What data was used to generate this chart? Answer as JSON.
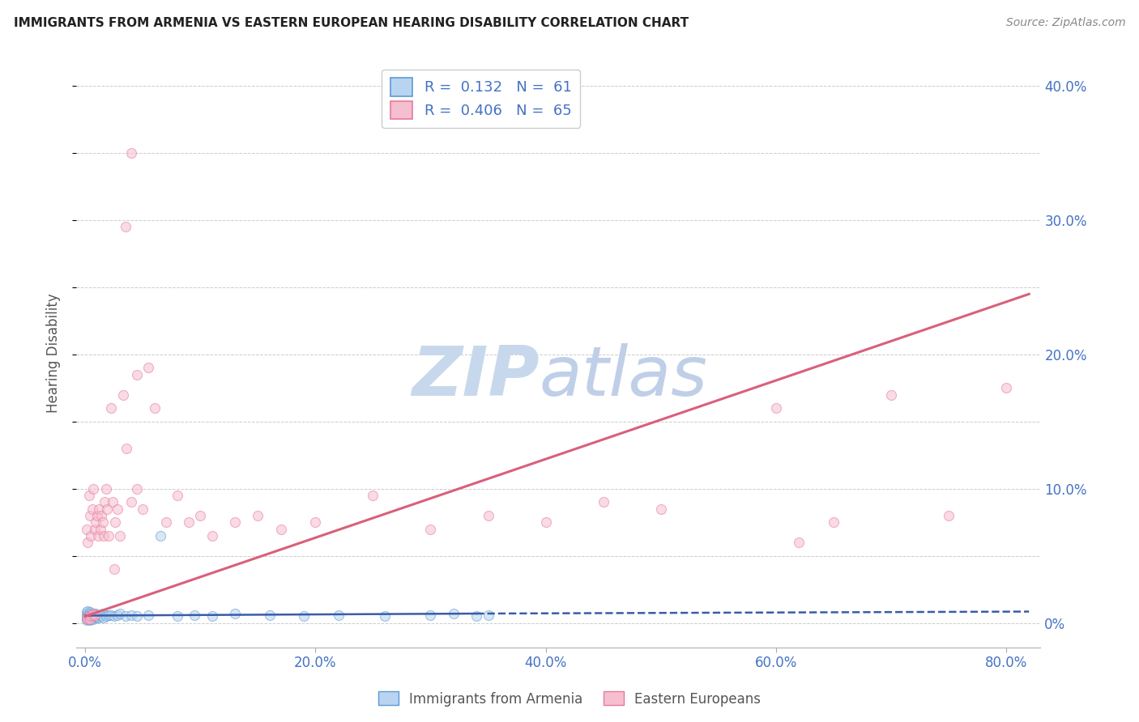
{
  "title": "IMMIGRANTS FROM ARMENIA VS EASTERN EUROPEAN HEARING DISABILITY CORRELATION CHART",
  "source": "Source: ZipAtlas.com",
  "ylabel": "Hearing Disability",
  "armenia_color": "#b8d4f0",
  "armenia_edge_color": "#5b9bd5",
  "eastern_color": "#f5bfcf",
  "eastern_edge_color": "#e8789e",
  "trendline_blue_color": "#3a5ca8",
  "trendline_pink_color": "#d9607a",
  "watermark_color": "#dde8f5",
  "background_color": "#ffffff",
  "xlim": [
    -0.008,
    0.83
  ],
  "ylim": [
    -0.018,
    0.42
  ],
  "x_ticks": [
    0.0,
    0.2,
    0.4,
    0.6,
    0.8
  ],
  "x_tick_labels": [
    "0.0%",
    "20.0%",
    "40.0%",
    "60.0%",
    "80.0%"
  ],
  "y_ticks": [
    0.0,
    0.1,
    0.2,
    0.3,
    0.4
  ],
  "y_tick_labels": [
    "0%",
    "10.0%",
    "20.0%",
    "30.0%",
    "40.0%"
  ],
  "label_armenia": "Immigrants from Armenia",
  "label_eastern": "Eastern Europeans",
  "marker_size": 75,
  "alpha": 0.55,
  "grid_color": "#cccccc",
  "arm_x": [
    0.001,
    0.001,
    0.001,
    0.001,
    0.002,
    0.002,
    0.002,
    0.002,
    0.002,
    0.003,
    0.003,
    0.003,
    0.003,
    0.004,
    0.004,
    0.004,
    0.004,
    0.005,
    0.005,
    0.005,
    0.005,
    0.006,
    0.006,
    0.007,
    0.007,
    0.007,
    0.008,
    0.008,
    0.009,
    0.009,
    0.01,
    0.01,
    0.011,
    0.012,
    0.013,
    0.014,
    0.015,
    0.016,
    0.018,
    0.02,
    0.022,
    0.025,
    0.028,
    0.03,
    0.035,
    0.04,
    0.045,
    0.055,
    0.065,
    0.08,
    0.095,
    0.11,
    0.13,
    0.16,
    0.19,
    0.22,
    0.26,
    0.3,
    0.32,
    0.34,
    0.35
  ],
  "arm_y": [
    0.004,
    0.006,
    0.002,
    0.008,
    0.003,
    0.005,
    0.007,
    0.004,
    0.009,
    0.003,
    0.006,
    0.004,
    0.007,
    0.002,
    0.005,
    0.008,
    0.004,
    0.003,
    0.006,
    0.007,
    0.005,
    0.004,
    0.006,
    0.003,
    0.007,
    0.005,
    0.004,
    0.006,
    0.005,
    0.007,
    0.004,
    0.006,
    0.005,
    0.004,
    0.006,
    0.005,
    0.007,
    0.004,
    0.005,
    0.006,
    0.006,
    0.005,
    0.006,
    0.007,
    0.005,
    0.006,
    0.005,
    0.006,
    0.065,
    0.005,
    0.006,
    0.005,
    0.007,
    0.006,
    0.005,
    0.006,
    0.005,
    0.006,
    0.007,
    0.005,
    0.006
  ],
  "east_x": [
    0.001,
    0.001,
    0.002,
    0.002,
    0.003,
    0.003,
    0.004,
    0.004,
    0.005,
    0.005,
    0.006,
    0.006,
    0.007,
    0.007,
    0.008,
    0.008,
    0.009,
    0.01,
    0.011,
    0.012,
    0.013,
    0.014,
    0.015,
    0.016,
    0.017,
    0.018,
    0.019,
    0.02,
    0.022,
    0.024,
    0.026,
    0.028,
    0.03,
    0.033,
    0.036,
    0.04,
    0.045,
    0.05,
    0.06,
    0.07,
    0.08,
    0.09,
    0.1,
    0.11,
    0.13,
    0.15,
    0.17,
    0.2,
    0.25,
    0.3,
    0.35,
    0.4,
    0.45,
    0.5,
    0.6,
    0.65,
    0.7,
    0.75,
    0.8,
    0.62,
    0.04,
    0.035,
    0.055,
    0.045,
    0.025
  ],
  "east_y": [
    0.004,
    0.07,
    0.06,
    0.003,
    0.095,
    0.005,
    0.08,
    0.003,
    0.065,
    0.005,
    0.085,
    0.006,
    0.1,
    0.007,
    0.07,
    0.006,
    0.075,
    0.08,
    0.065,
    0.085,
    0.07,
    0.08,
    0.075,
    0.065,
    0.09,
    0.1,
    0.085,
    0.065,
    0.16,
    0.09,
    0.075,
    0.085,
    0.065,
    0.17,
    0.13,
    0.09,
    0.1,
    0.085,
    0.16,
    0.075,
    0.095,
    0.075,
    0.08,
    0.065,
    0.075,
    0.08,
    0.07,
    0.075,
    0.095,
    0.07,
    0.08,
    0.075,
    0.09,
    0.085,
    0.16,
    0.075,
    0.17,
    0.08,
    0.175,
    0.06,
    0.35,
    0.295,
    0.19,
    0.185,
    0.04
  ],
  "trendline_blue_x0": 0.0,
  "trendline_blue_x1": 0.34,
  "trendline_blue_y0": 0.0055,
  "trendline_blue_y1": 0.007,
  "trendline_blue_dashed_x0": 0.34,
  "trendline_blue_dashed_x1": 0.82,
  "trendline_blue_dashed_y0": 0.007,
  "trendline_blue_dashed_y1": 0.0085,
  "trendline_pink_x0": 0.0,
  "trendline_pink_x1": 0.82,
  "trendline_pink_y0": 0.005,
  "trendline_pink_y1": 0.245
}
